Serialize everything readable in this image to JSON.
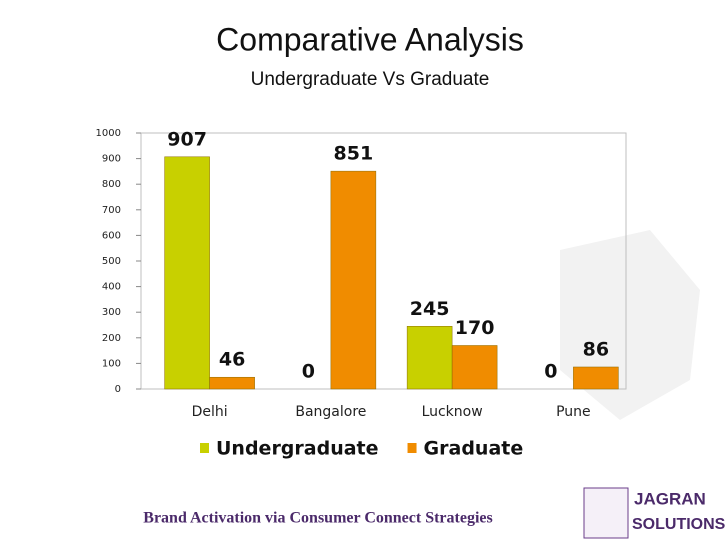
{
  "chart_data": {
    "type": "bar",
    "title": "Comparative Analysis",
    "subtitle": "Undergraduate Vs Graduate",
    "categories": [
      "Delhi",
      "Bangalore",
      "Lucknow",
      "Pune"
    ],
    "series": [
      {
        "name": "Undergraduate",
        "color": "#c8d000",
        "values": [
          907,
          0,
          245,
          0
        ]
      },
      {
        "name": "Graduate",
        "color": "#f08c00",
        "values": [
          46,
          851,
          170,
          86
        ]
      }
    ],
    "ylim": [
      0,
      1000
    ],
    "yticks": [
      0,
      100,
      200,
      300,
      400,
      500,
      600,
      700,
      800,
      900,
      1000
    ],
    "grid": false,
    "legend": "bottom"
  },
  "footer": {
    "tagline": "Brand Activation via Consumer Connect Strategies",
    "logo": [
      "JAGRAN",
      "SOLUTIONS"
    ]
  }
}
